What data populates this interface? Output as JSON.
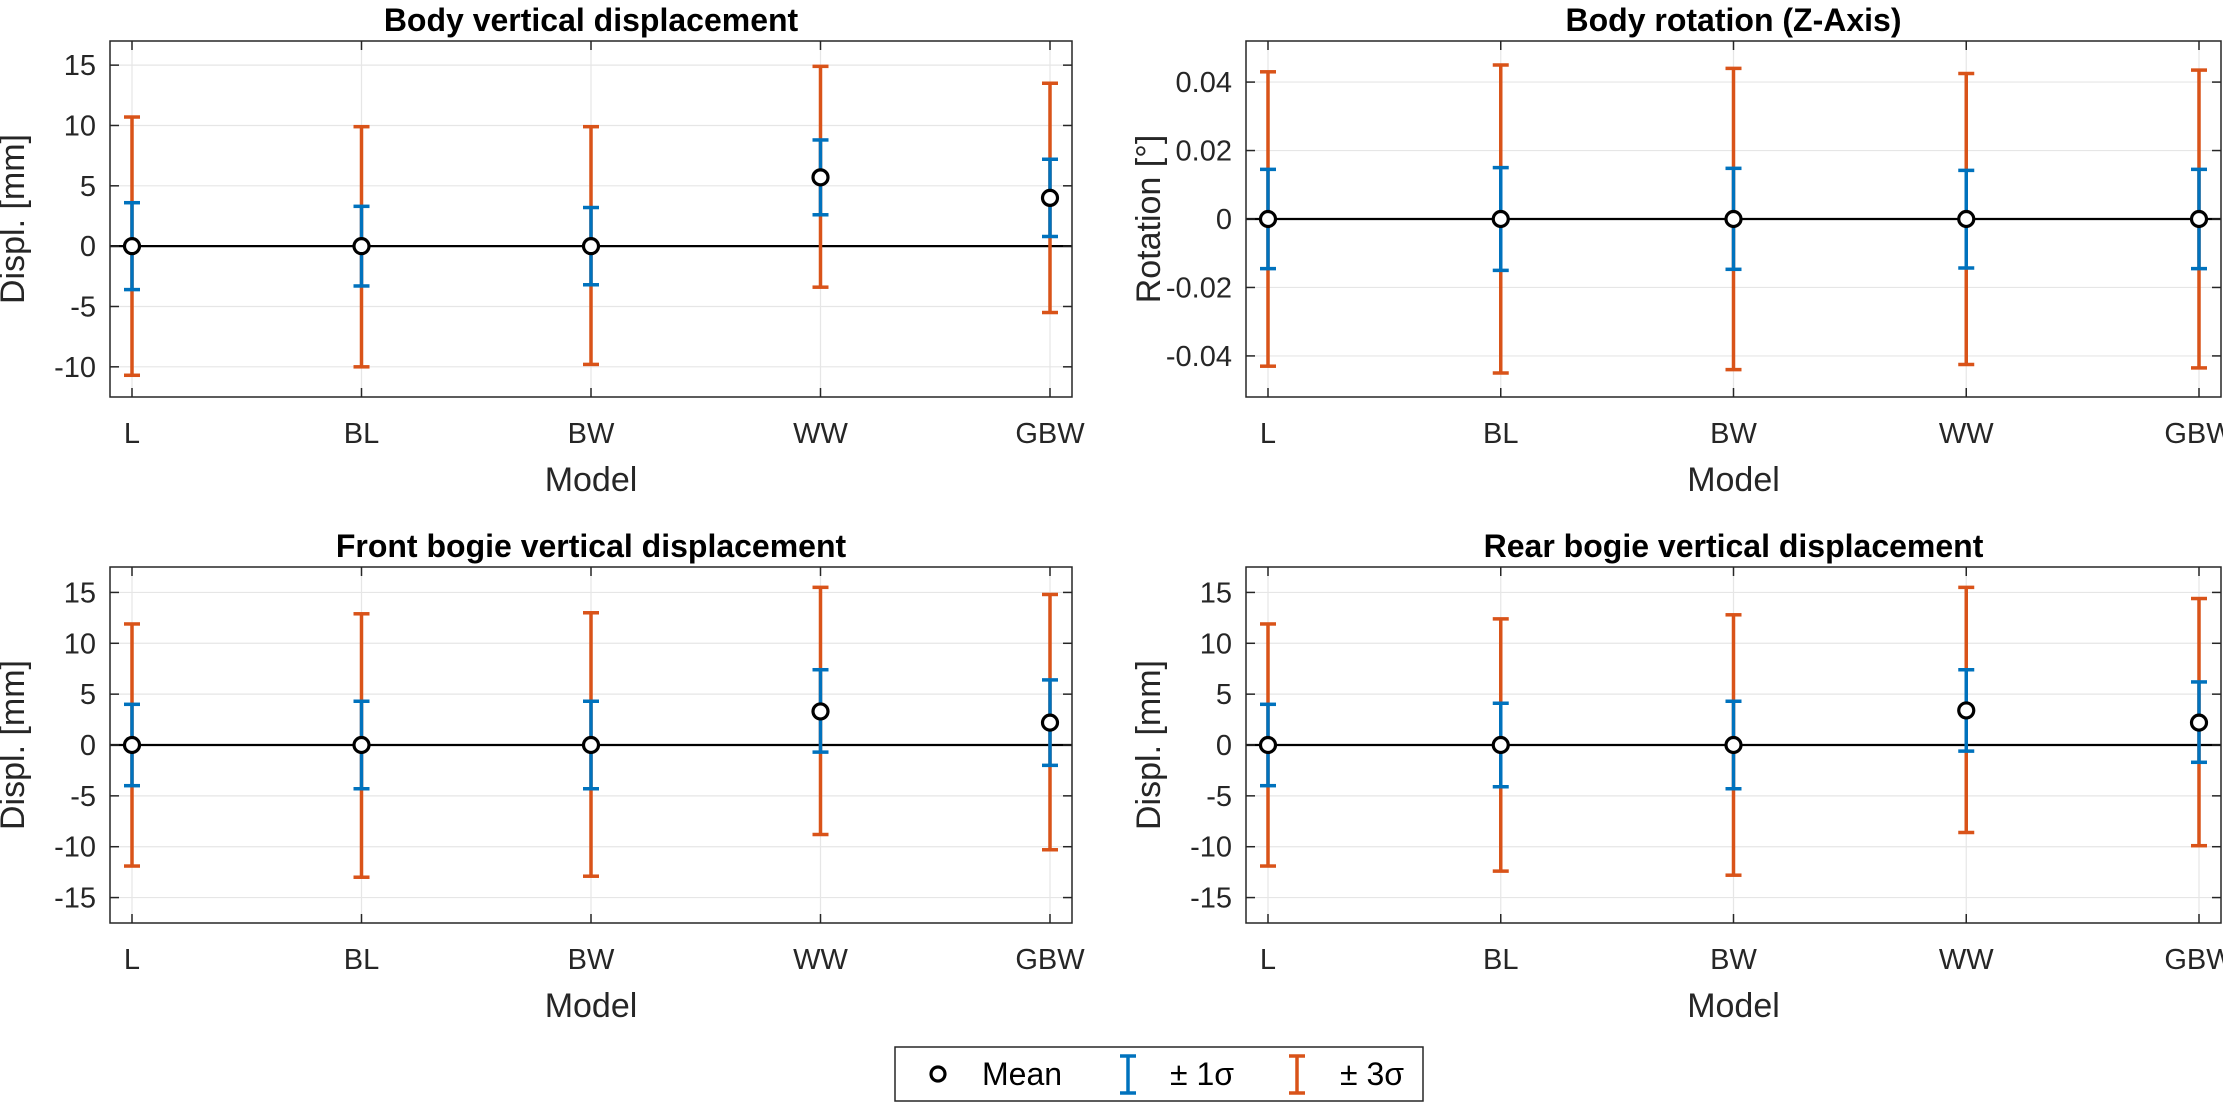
{
  "colors": {
    "sigma1": "#0072BD",
    "sigma3": "#D95319",
    "mean_marker": "#000000",
    "grid": "#e6e6e6",
    "axis": "#262626",
    "zero_line": "#000000"
  },
  "legend": {
    "items": [
      {
        "label": "Mean",
        "kind": "mean"
      },
      {
        "label": "± 1σ",
        "kind": "sigma1"
      },
      {
        "label": "± 3σ",
        "kind": "sigma3"
      }
    ]
  },
  "chart_data": [
    {
      "type": "errorbar",
      "title": "Body vertical displacement",
      "xlabel": "Model",
      "ylabel": "Displ. [mm]",
      "categories": [
        "L",
        "BL",
        "BW",
        "WW",
        "GBW"
      ],
      "ylim": [
        -12.5,
        17
      ],
      "yticks": [
        -10,
        -5,
        0,
        5,
        10,
        15
      ],
      "ytick_labels": [
        "-10",
        "-5",
        "0",
        "5",
        "10",
        "15"
      ],
      "mean": [
        0,
        0,
        0,
        5.7,
        4.0
      ],
      "sigma1": [
        [
          -3.6,
          3.6
        ],
        [
          -3.3,
          3.3
        ],
        [
          -3.2,
          3.2
        ],
        [
          2.6,
          8.8
        ],
        [
          0.8,
          7.2
        ]
      ],
      "sigma3": [
        [
          -10.7,
          10.7
        ],
        [
          -10.0,
          9.9
        ],
        [
          -9.8,
          9.9
        ],
        [
          -3.4,
          14.9
        ],
        [
          -5.5,
          13.5
        ]
      ]
    },
    {
      "type": "errorbar",
      "title": "Body rotation (Z-Axis)",
      "xlabel": "Model",
      "ylabel": "Rotation [°]",
      "categories": [
        "L",
        "BL",
        "BW",
        "WW",
        "GBW"
      ],
      "ylim": [
        -0.052,
        0.052
      ],
      "yticks": [
        -0.04,
        -0.02,
        0,
        0.02,
        0.04
      ],
      "ytick_labels": [
        "-0.04",
        "-0.02",
        "0",
        "0.02",
        "0.04"
      ],
      "mean": [
        0,
        0,
        0,
        0,
        0
      ],
      "sigma1": [
        [
          -0.0145,
          0.0145
        ],
        [
          -0.015,
          0.015
        ],
        [
          -0.0147,
          0.0148
        ],
        [
          -0.0143,
          0.0142
        ],
        [
          -0.0145,
          0.0145
        ]
      ],
      "sigma3": [
        [
          -0.043,
          0.043
        ],
        [
          -0.045,
          0.045
        ],
        [
          -0.044,
          0.044
        ],
        [
          -0.0425,
          0.0425
        ],
        [
          -0.0435,
          0.0435
        ]
      ]
    },
    {
      "type": "errorbar",
      "title": "Front bogie vertical displacement",
      "xlabel": "Model",
      "ylabel": "Displ. [mm]",
      "categories": [
        "L",
        "BL",
        "BW",
        "WW",
        "GBW"
      ],
      "ylim": [
        -17.5,
        17.5
      ],
      "yticks": [
        -15,
        -10,
        -5,
        0,
        5,
        10,
        15
      ],
      "ytick_labels": [
        "-15",
        "-10",
        "-5",
        "0",
        "5",
        "10",
        "15"
      ],
      "mean": [
        0,
        0,
        0,
        3.3,
        2.2
      ],
      "sigma1": [
        [
          -4.0,
          4.0
        ],
        [
          -4.3,
          4.3
        ],
        [
          -4.3,
          4.3
        ],
        [
          -0.7,
          7.4
        ],
        [
          -2.0,
          6.4
        ]
      ],
      "sigma3": [
        [
          -11.9,
          11.9
        ],
        [
          -13.0,
          12.9
        ],
        [
          -12.9,
          13.0
        ],
        [
          -8.8,
          15.5
        ],
        [
          -10.3,
          14.8
        ]
      ]
    },
    {
      "type": "errorbar",
      "title": "Rear bogie vertical displacement",
      "xlabel": "Model",
      "ylabel": "Displ. [mm]",
      "categories": [
        "L",
        "BL",
        "BW",
        "WW",
        "GBW"
      ],
      "ylim": [
        -17.5,
        17.5
      ],
      "yticks": [
        -15,
        -10,
        -5,
        0,
        5,
        10,
        15
      ],
      "ytick_labels": [
        "-15",
        "-10",
        "-5",
        "0",
        "5",
        "10",
        "15"
      ],
      "mean": [
        0,
        0,
        0,
        3.4,
        2.2
      ],
      "sigma1": [
        [
          -4.0,
          4.0
        ],
        [
          -4.1,
          4.1
        ],
        [
          -4.3,
          4.3
        ],
        [
          -0.6,
          7.4
        ],
        [
          -1.7,
          6.2
        ]
      ],
      "sigma3": [
        [
          -11.9,
          11.9
        ],
        [
          -12.4,
          12.4
        ],
        [
          -12.8,
          12.8
        ],
        [
          -8.6,
          15.5
        ],
        [
          -9.9,
          14.4
        ]
      ]
    }
  ]
}
